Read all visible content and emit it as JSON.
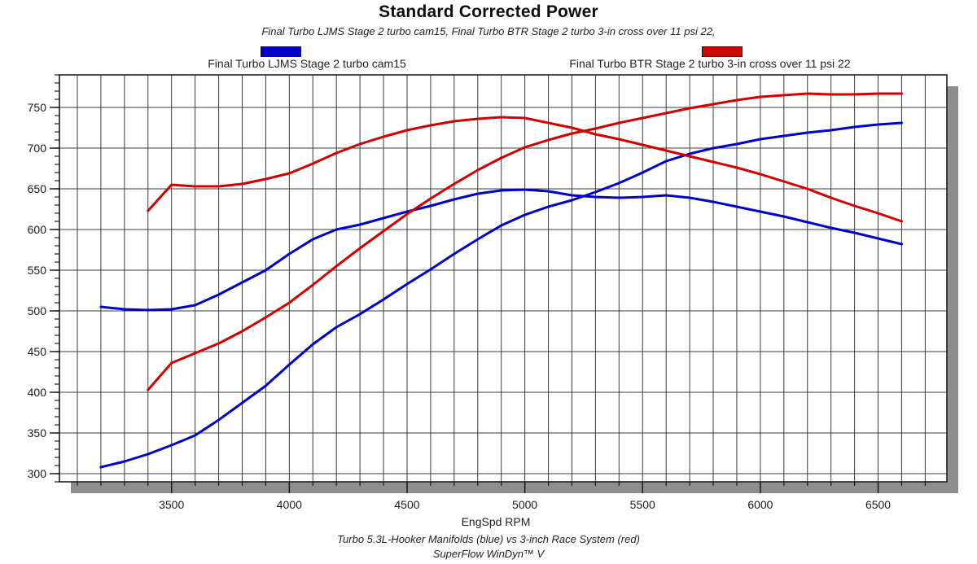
{
  "title": "Standard Corrected Power",
  "subtitle": "Final Turbo LJMS Stage 2 turbo cam15, Final Turbo BTR Stage 2 turbo 3-in cross over 11 psi 22,",
  "legend": [
    {
      "label": "Final Turbo LJMS Stage 2 turbo cam15",
      "color": "#0000cc"
    },
    {
      "label": "Final Turbo BTR Stage 2 turbo 3-in cross over 11 psi 22",
      "color": "#d40000"
    }
  ],
  "x_axis_label": "EngSpd RPM",
  "footer_line1": "Turbo 5.3L-Hooker Manifolds (blue) vs 3-inch Race System (red)",
  "footer_line2": "SuperFlow WinDyn™ V",
  "chart_data": {
    "type": "line",
    "title": "Standard Corrected Power",
    "xlabel": "EngSpd RPM",
    "ylabel": "",
    "xlim": [
      3024,
      6792
    ],
    "ylim": [
      290,
      790
    ],
    "x_major_ticks": [
      3500,
      4000,
      4500,
      5000,
      5500,
      6000,
      6500
    ],
    "x_minor_step": 100,
    "y_major_ticks": [
      300,
      350,
      400,
      450,
      500,
      550,
      600,
      650,
      700,
      750
    ],
    "y_minor_step": 10,
    "grid": "vertical line every 100 RPM, horizontal line every 50 units",
    "legend_position": "top",
    "colors": {
      "grid": "#3c3c3c",
      "frame": "#1f1f1f",
      "shadow": "#8e8e8e"
    },
    "series": [
      {
        "name": "Final Turbo LJMS Stage 2 turbo cam15 - torque (blue)",
        "color": "#0000cc",
        "points": [
          [
            3200,
            505
          ],
          [
            3300,
            502
          ],
          [
            3400,
            501
          ],
          [
            3500,
            502
          ],
          [
            3600,
            507
          ],
          [
            3700,
            520
          ],
          [
            3800,
            535
          ],
          [
            3900,
            550
          ],
          [
            4000,
            570
          ],
          [
            4100,
            588
          ],
          [
            4200,
            600
          ],
          [
            4300,
            606
          ],
          [
            4400,
            614
          ],
          [
            4500,
            622
          ],
          [
            4600,
            629
          ],
          [
            4700,
            637
          ],
          [
            4800,
            644
          ],
          [
            4900,
            648
          ],
          [
            5000,
            649
          ],
          [
            5100,
            647
          ],
          [
            5200,
            642
          ],
          [
            5300,
            640
          ],
          [
            5400,
            639
          ],
          [
            5500,
            640
          ],
          [
            5600,
            642
          ],
          [
            5700,
            639
          ],
          [
            5800,
            634
          ],
          [
            5900,
            628
          ],
          [
            6000,
            622
          ],
          [
            6100,
            616
          ],
          [
            6200,
            609
          ],
          [
            6300,
            602
          ],
          [
            6400,
            596
          ],
          [
            6500,
            589
          ],
          [
            6600,
            582
          ]
        ]
      },
      {
        "name": "Final Turbo LJMS Stage 2 turbo cam15 - power (blue)",
        "color": "#0000cc",
        "points": [
          [
            3200,
            308
          ],
          [
            3300,
            315
          ],
          [
            3400,
            324
          ],
          [
            3500,
            335
          ],
          [
            3600,
            347
          ],
          [
            3700,
            366
          ],
          [
            3800,
            387
          ],
          [
            3900,
            408
          ],
          [
            4000,
            434
          ],
          [
            4100,
            459
          ],
          [
            4200,
            480
          ],
          [
            4300,
            496
          ],
          [
            4400,
            514
          ],
          [
            4500,
            533
          ],
          [
            4600,
            551
          ],
          [
            4700,
            570
          ],
          [
            4800,
            588
          ],
          [
            4900,
            605
          ],
          [
            5000,
            618
          ],
          [
            5100,
            628
          ],
          [
            5200,
            636
          ],
          [
            5300,
            646
          ],
          [
            5400,
            657
          ],
          [
            5500,
            670
          ],
          [
            5600,
            684
          ],
          [
            5700,
            693
          ],
          [
            5800,
            700
          ],
          [
            5900,
            705
          ],
          [
            6000,
            711
          ],
          [
            6100,
            715
          ],
          [
            6200,
            719
          ],
          [
            6300,
            722
          ],
          [
            6400,
            726
          ],
          [
            6500,
            729
          ],
          [
            6600,
            731
          ]
        ]
      },
      {
        "name": "Final Turbo BTR Stage 2 turbo 3-in cross over 11 psi 22 - torque (red)",
        "color": "#d40000",
        "points": [
          [
            3400,
            623
          ],
          [
            3500,
            655
          ],
          [
            3600,
            653
          ],
          [
            3700,
            653
          ],
          [
            3800,
            656
          ],
          [
            3900,
            662
          ],
          [
            4000,
            669
          ],
          [
            4100,
            681
          ],
          [
            4200,
            694
          ],
          [
            4300,
            705
          ],
          [
            4400,
            714
          ],
          [
            4500,
            722
          ],
          [
            4600,
            728
          ],
          [
            4700,
            733
          ],
          [
            4800,
            736
          ],
          [
            4900,
            738
          ],
          [
            5000,
            737
          ],
          [
            5100,
            731
          ],
          [
            5200,
            725
          ],
          [
            5300,
            717
          ],
          [
            5400,
            711
          ],
          [
            5500,
            704
          ],
          [
            5600,
            697
          ],
          [
            5700,
            690
          ],
          [
            5800,
            683
          ],
          [
            5900,
            676
          ],
          [
            6000,
            668
          ],
          [
            6100,
            659
          ],
          [
            6200,
            650
          ],
          [
            6300,
            639
          ],
          [
            6400,
            629
          ],
          [
            6500,
            620
          ],
          [
            6600,
            610
          ]
        ]
      },
      {
        "name": "Final Turbo BTR Stage 2 turbo 3-in cross over 11 psi 22 - power (red)",
        "color": "#d40000",
        "points": [
          [
            3400,
            403
          ],
          [
            3500,
            436
          ],
          [
            3600,
            448
          ],
          [
            3700,
            460
          ],
          [
            3800,
            475
          ],
          [
            3900,
            492
          ],
          [
            4000,
            510
          ],
          [
            4100,
            532
          ],
          [
            4200,
            555
          ],
          [
            4300,
            577
          ],
          [
            4400,
            598
          ],
          [
            4500,
            619
          ],
          [
            4600,
            638
          ],
          [
            4700,
            656
          ],
          [
            4800,
            673
          ],
          [
            4900,
            688
          ],
          [
            5000,
            701
          ],
          [
            5100,
            710
          ],
          [
            5200,
            718
          ],
          [
            5300,
            724
          ],
          [
            5400,
            731
          ],
          [
            5500,
            737
          ],
          [
            5600,
            743
          ],
          [
            5700,
            749
          ],
          [
            5800,
            754
          ],
          [
            5900,
            759
          ],
          [
            6000,
            763
          ],
          [
            6100,
            765
          ],
          [
            6200,
            767
          ],
          [
            6300,
            766
          ],
          [
            6400,
            766
          ],
          [
            6500,
            767
          ],
          [
            6600,
            767
          ]
        ]
      }
    ]
  }
}
